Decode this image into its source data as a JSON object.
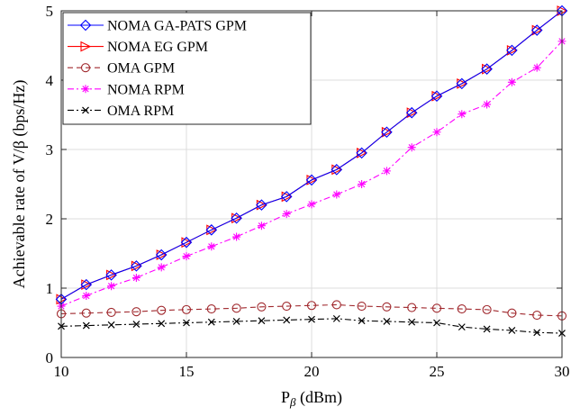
{
  "chart_data": {
    "type": "line",
    "xlabel": "P",
    "xlabel_sub": "β",
    "xlabel_unit": " (dBm)",
    "ylabel": "Achievable rate of  V/β (bps/Hz)",
    "xlim": [
      10,
      30
    ],
    "ylim": [
      0,
      5
    ],
    "xticks": [
      10,
      15,
      20,
      25,
      30
    ],
    "yticks": [
      0,
      1,
      2,
      3,
      4,
      5
    ],
    "grid": true,
    "legend_position": "top-left",
    "x": [
      10,
      11,
      12,
      13,
      14,
      15,
      16,
      17,
      18,
      19,
      20,
      21,
      22,
      23,
      24,
      25,
      26,
      27,
      28,
      29,
      30
    ],
    "series": [
      {
        "name": "NOMA GA-PATS GPM",
        "color": "#0000ff",
        "line": "solid",
        "marker": "diamond",
        "values": [
          0.84,
          1.05,
          1.19,
          1.32,
          1.48,
          1.66,
          1.84,
          2.01,
          2.2,
          2.32,
          2.56,
          2.71,
          2.95,
          3.25,
          3.53,
          3.77,
          3.95,
          4.16,
          4.43,
          4.72,
          5.0
        ]
      },
      {
        "name": "NOMA EG GPM",
        "color": "#ff0000",
        "line": "solid",
        "marker": "triangle-right",
        "values": [
          0.84,
          1.05,
          1.19,
          1.32,
          1.48,
          1.66,
          1.84,
          2.01,
          2.2,
          2.32,
          2.56,
          2.71,
          2.95,
          3.25,
          3.53,
          3.77,
          3.95,
          4.16,
          4.43,
          4.72,
          5.0
        ]
      },
      {
        "name": "OMA GPM",
        "color": "#a0282d",
        "line": "dashed",
        "marker": "circle",
        "values": [
          0.63,
          0.64,
          0.65,
          0.66,
          0.68,
          0.69,
          0.7,
          0.71,
          0.73,
          0.74,
          0.75,
          0.76,
          0.74,
          0.73,
          0.72,
          0.71,
          0.7,
          0.69,
          0.64,
          0.61,
          0.6
        ]
      },
      {
        "name": "NOMA RPM",
        "color": "#ff00ff",
        "line": "dashdot",
        "marker": "asterisk",
        "values": [
          0.74,
          0.89,
          1.03,
          1.15,
          1.3,
          1.46,
          1.6,
          1.74,
          1.9,
          2.07,
          2.21,
          2.35,
          2.5,
          2.69,
          3.03,
          3.25,
          3.51,
          3.65,
          3.97,
          4.18,
          4.56
        ]
      },
      {
        "name": "OMA RPM",
        "color": "#000000",
        "line": "dashdot",
        "marker": "x",
        "values": [
          0.45,
          0.46,
          0.47,
          0.48,
          0.49,
          0.5,
          0.51,
          0.52,
          0.53,
          0.54,
          0.55,
          0.56,
          0.53,
          0.52,
          0.51,
          0.5,
          0.44,
          0.41,
          0.39,
          0.36,
          0.35
        ]
      }
    ]
  }
}
